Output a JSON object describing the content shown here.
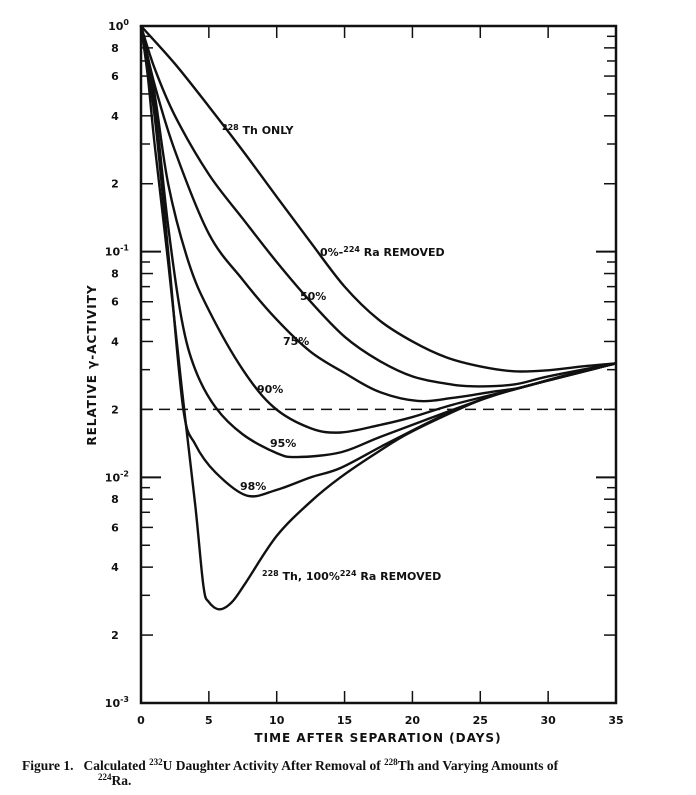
{
  "chart_data": {
    "type": "line",
    "title": "",
    "xlabel": "TIME AFTER SEPARATION (DAYS)",
    "ylabel": "RELATIVE γ-ACTIVITY",
    "xlim": [
      0,
      35
    ],
    "ylim": [
      0.001,
      1
    ],
    "yscale": "log",
    "grid": false,
    "line_color": "#111111",
    "x_ticks": [
      "0",
      "5",
      "10",
      "15",
      "20",
      "25",
      "30",
      "35"
    ],
    "x_tick_values": [
      0,
      5,
      10,
      15,
      20,
      25,
      30,
      35
    ],
    "y_ticks": [
      {
        "value": 1,
        "base": "10",
        "exp": "0"
      },
      {
        "value": 0.8,
        "label": "8"
      },
      {
        "value": 0.6,
        "label": "6"
      },
      {
        "value": 0.4,
        "label": "4"
      },
      {
        "value": 0.2,
        "label": "2"
      },
      {
        "value": 0.1,
        "base": "10",
        "exp": "-1"
      },
      {
        "value": 0.08,
        "label": "8"
      },
      {
        "value": 0.06,
        "label": "6"
      },
      {
        "value": 0.04,
        "label": "4"
      },
      {
        "value": 0.02,
        "label": "2"
      },
      {
        "value": 0.01,
        "base": "10",
        "exp": "-2"
      },
      {
        "value": 0.008,
        "label": "8"
      },
      {
        "value": 0.006,
        "label": "6"
      },
      {
        "value": 0.004,
        "label": "4"
      },
      {
        "value": 0.002,
        "label": "2"
      },
      {
        "value": 0.001,
        "base": "10",
        "exp": "-3"
      }
    ],
    "reference_line": {
      "y": 0.02,
      "style": "dashed"
    },
    "series": [
      {
        "key": "0pct",
        "points": [
          [
            0,
            1
          ],
          [
            2.5,
            0.68
          ],
          [
            5,
            0.44
          ],
          [
            7.5,
            0.28
          ],
          [
            10,
            0.175
          ],
          [
            12.5,
            0.11
          ],
          [
            15,
            0.07
          ],
          [
            17.5,
            0.05
          ],
          [
            20,
            0.04
          ],
          [
            22.5,
            0.034
          ],
          [
            25,
            0.031
          ],
          [
            27.5,
            0.0295
          ],
          [
            30,
            0.0298
          ],
          [
            32.5,
            0.031
          ],
          [
            35,
            0.032
          ]
        ]
      },
      {
        "key": "50pct",
        "points": [
          [
            0,
            1
          ],
          [
            1,
            0.65
          ],
          [
            2.5,
            0.4
          ],
          [
            5,
            0.22
          ],
          [
            7.5,
            0.14
          ],
          [
            10,
            0.09
          ],
          [
            12.5,
            0.06
          ],
          [
            15,
            0.042
          ],
          [
            17.5,
            0.033
          ],
          [
            20,
            0.028
          ],
          [
            22.5,
            0.026
          ],
          [
            24.5,
            0.0253
          ],
          [
            27.5,
            0.0258
          ],
          [
            30,
            0.028
          ],
          [
            35,
            0.032
          ]
        ]
      },
      {
        "key": "75pct",
        "points": [
          [
            0,
            1
          ],
          [
            1,
            0.55
          ],
          [
            2.5,
            0.28
          ],
          [
            5,
            0.12
          ],
          [
            7.5,
            0.075
          ],
          [
            10,
            0.05
          ],
          [
            12.5,
            0.036
          ],
          [
            15,
            0.029
          ],
          [
            17.5,
            0.024
          ],
          [
            20.4,
            0.0218
          ],
          [
            23,
            0.0225
          ],
          [
            26,
            0.024
          ],
          [
            28,
            0.025
          ],
          [
            31,
            0.028
          ],
          [
            35,
            0.032
          ]
        ]
      },
      {
        "key": "90pct",
        "points": [
          [
            0,
            1
          ],
          [
            1,
            0.5
          ],
          [
            2,
            0.2
          ],
          [
            3.5,
            0.09
          ],
          [
            5,
            0.055
          ],
          [
            7.5,
            0.03
          ],
          [
            9.8,
            0.0204
          ],
          [
            12.5,
            0.0165
          ],
          [
            14.7,
            0.0158
          ],
          [
            17.5,
            0.017
          ],
          [
            20,
            0.0185
          ],
          [
            23,
            0.021
          ],
          [
            28,
            0.025
          ],
          [
            31,
            0.028
          ],
          [
            35,
            0.032
          ]
        ]
      },
      {
        "key": "95pct",
        "points": [
          [
            0,
            1
          ],
          [
            1,
            0.45
          ],
          [
            2,
            0.13
          ],
          [
            3,
            0.05
          ],
          [
            4,
            0.03
          ],
          [
            5.5,
            0.0204
          ],
          [
            7.5,
            0.0155
          ],
          [
            10,
            0.0128
          ],
          [
            11.5,
            0.0123
          ],
          [
            14.7,
            0.0129
          ],
          [
            17.5,
            0.015
          ],
          [
            21,
            0.018
          ],
          [
            25,
            0.022
          ],
          [
            28,
            0.025
          ],
          [
            35,
            0.032
          ]
        ]
      },
      {
        "key": "98pct",
        "points": [
          [
            0,
            1
          ],
          [
            1,
            0.4
          ],
          [
            2,
            0.1
          ],
          [
            3.1,
            0.0204
          ],
          [
            4,
            0.014
          ],
          [
            5.5,
            0.0105
          ],
          [
            7.8,
            0.0083
          ],
          [
            10,
            0.0088
          ],
          [
            12.5,
            0.01
          ],
          [
            14.7,
            0.011
          ],
          [
            18,
            0.014
          ],
          [
            22,
            0.0185
          ],
          [
            25,
            0.022
          ],
          [
            28,
            0.025
          ],
          [
            35,
            0.032
          ]
        ]
      },
      {
        "key": "100pct",
        "points": [
          [
            0,
            1
          ],
          [
            0.5,
            0.6
          ],
          [
            1,
            0.3
          ],
          [
            2,
            0.09
          ],
          [
            3,
            0.025
          ],
          [
            4,
            0.0075
          ],
          [
            4.6,
            0.0033
          ],
          [
            5,
            0.0028
          ],
          [
            5.8,
            0.0026
          ],
          [
            6.7,
            0.0028
          ],
          [
            7.7,
            0.0034
          ],
          [
            10,
            0.0055
          ],
          [
            12.5,
            0.0078
          ],
          [
            14.7,
            0.01
          ],
          [
            17.5,
            0.013
          ],
          [
            20,
            0.016
          ],
          [
            25,
            0.022
          ],
          [
            28,
            0.025
          ],
          [
            35,
            0.032
          ]
        ]
      }
    ],
    "annotations": [
      {
        "sup": "228",
        "text": "Th ONLY"
      },
      {
        "text": "0%-",
        "sup": "224",
        "text2": "Ra REMOVED"
      },
      {
        "text": "50%"
      },
      {
        "text": "75%"
      },
      {
        "text": "90%"
      },
      {
        "text": "95%"
      },
      {
        "text": "98%"
      },
      {
        "sup": "228",
        "text": "Th, 100%",
        "sup2": "224",
        "text2": "Ra REMOVED"
      }
    ]
  },
  "caption": {
    "label": "Figure 1.",
    "part1": "Calculated ",
    "sup1": "232",
    "part2": "U Daughter Activity After Removal of ",
    "sup2": "228",
    "part3": "Th and Varying Amounts of",
    "sup3": "224",
    "part4": "Ra."
  }
}
